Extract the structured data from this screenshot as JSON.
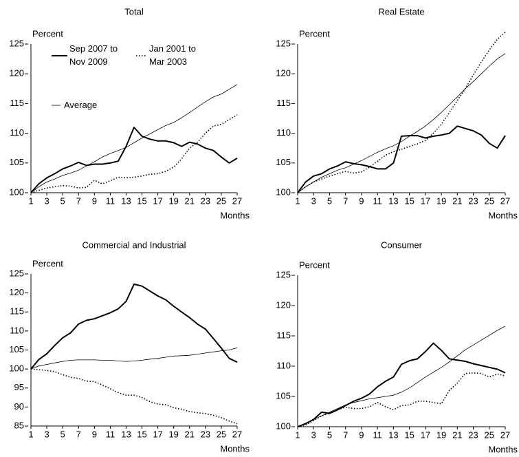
{
  "chart_data": [
    {
      "type": "line",
      "title": "Total",
      "ylabel": "Percent",
      "xlabel": "Months",
      "legend": true,
      "x": [
        1,
        2,
        3,
        4,
        5,
        6,
        7,
        8,
        9,
        10,
        11,
        12,
        13,
        14,
        15,
        16,
        17,
        18,
        19,
        20,
        21,
        22,
        23,
        24,
        25,
        26,
        27
      ],
      "xlim": [
        1,
        27
      ],
      "xticks": [
        1,
        3,
        5,
        7,
        9,
        11,
        13,
        15,
        17,
        19,
        21,
        23,
        25,
        27
      ],
      "ylim": [
        100,
        125
      ],
      "yticks": [
        100,
        105,
        110,
        115,
        120,
        125
      ],
      "series": [
        {
          "name": "Sep 2007 to Nov 2009",
          "color": "#000000",
          "linestyle": "solid",
          "linewidth": 2,
          "values": [
            100,
            101.5,
            102.5,
            103.2,
            104,
            104.5,
            105.1,
            104.6,
            104.8,
            104.8,
            105,
            105.3,
            107.8,
            111,
            109.5,
            109,
            108.7,
            108.7,
            108.4,
            107.8,
            108.5,
            108.2,
            107.5,
            107.1,
            106,
            105,
            105.8
          ]
        },
        {
          "name": "Jan 2001 to Mar 2003",
          "color": "#000000",
          "linestyle": "dotted",
          "linewidth": 1.6,
          "values": [
            100,
            100.4,
            100.8,
            101,
            101.2,
            101.1,
            100.8,
            100.9,
            102.1,
            101.5,
            102,
            102.6,
            102.5,
            102.6,
            102.8,
            103.1,
            103.2,
            103.6,
            104.3,
            105.7,
            107.5,
            108.5,
            110,
            111.2,
            111.5,
            112.3,
            113.1
          ]
        },
        {
          "name": "Average",
          "color": "#000000",
          "linestyle": "solid",
          "linewidth": 0.8,
          "values": [
            100,
            101,
            101.8,
            102.3,
            102.9,
            103.3,
            103.8,
            104.5,
            105.2,
            106,
            106.6,
            107.1,
            107.6,
            108.4,
            109.2,
            109.9,
            110.6,
            111.3,
            111.8,
            112.6,
            113.5,
            114.4,
            115.3,
            116.1,
            116.6,
            117.4,
            118.2
          ]
        }
      ]
    },
    {
      "type": "line",
      "title": "Real Estate",
      "ylabel": "Percent",
      "xlabel": "Months",
      "legend": false,
      "x": [
        1,
        2,
        3,
        4,
        5,
        6,
        7,
        8,
        9,
        10,
        11,
        12,
        13,
        14,
        15,
        16,
        17,
        18,
        19,
        20,
        21,
        22,
        23,
        24,
        25,
        26,
        27
      ],
      "xlim": [
        1,
        27
      ],
      "xticks": [
        1,
        3,
        5,
        7,
        9,
        11,
        13,
        15,
        17,
        19,
        21,
        23,
        25,
        27
      ],
      "ylim": [
        100,
        125
      ],
      "yticks": [
        100,
        105,
        110,
        115,
        120,
        125
      ],
      "series": [
        {
          "name": "Sep 2007 to Nov 2009",
          "color": "#000000",
          "linestyle": "solid",
          "linewidth": 2,
          "values": [
            100,
            101.8,
            102.8,
            103.2,
            104,
            104.5,
            105.2,
            104.9,
            104.7,
            104.4,
            104,
            104,
            105,
            109.5,
            109.6,
            109.6,
            109.2,
            109.5,
            109.7,
            110,
            111.2,
            110.8,
            110.4,
            109.7,
            108.3,
            107.5,
            109.6
          ]
        },
        {
          "name": "Jan 2001 to Mar 2003",
          "color": "#000000",
          "linestyle": "dotted",
          "linewidth": 1.6,
          "values": [
            100,
            101,
            101.8,
            102.3,
            102.8,
            103.2,
            103.6,
            103.3,
            103.5,
            104.3,
            105.3,
            106.3,
            106.9,
            107.3,
            107.8,
            108.2,
            108.8,
            110,
            111.5,
            113.5,
            115.5,
            117.5,
            119.8,
            122,
            124,
            125.8,
            127
          ]
        },
        {
          "name": "Average",
          "color": "#000000",
          "linestyle": "solid",
          "linewidth": 0.8,
          "values": [
            100,
            101,
            101.8,
            102.6,
            103.2,
            103.8,
            104.2,
            104.8,
            105.4,
            106.1,
            106.8,
            107.4,
            107.9,
            108.6,
            109.5,
            110.3,
            111.2,
            112.3,
            113.5,
            114.8,
            116.1,
            117.5,
            118.7,
            120,
            121.3,
            122.5,
            123.4
          ]
        }
      ]
    },
    {
      "type": "line",
      "title": "Commercial and Industrial",
      "ylabel": "Percent",
      "xlabel": "Months",
      "legend": false,
      "x": [
        1,
        2,
        3,
        4,
        5,
        6,
        7,
        8,
        9,
        10,
        11,
        12,
        13,
        14,
        15,
        16,
        17,
        18,
        19,
        20,
        21,
        22,
        23,
        24,
        25,
        26,
        27
      ],
      "xlim": [
        1,
        27
      ],
      "xticks": [
        1,
        3,
        5,
        7,
        9,
        11,
        13,
        15,
        17,
        19,
        21,
        23,
        25,
        27
      ],
      "ylim": [
        85,
        125
      ],
      "yticks": [
        85,
        90,
        95,
        100,
        105,
        110,
        115,
        120,
        125
      ],
      "series": [
        {
          "name": "Sep 2007 to Nov 2009",
          "color": "#000000",
          "linestyle": "solid",
          "linewidth": 2,
          "values": [
            100,
            102.5,
            104,
            106.2,
            108.2,
            109.5,
            111.8,
            112.8,
            113.2,
            114,
            114.8,
            115.8,
            117.8,
            122.3,
            121.8,
            120.5,
            119.2,
            118.2,
            116.5,
            115,
            113.5,
            111.8,
            110.5,
            108,
            105.5,
            102.8,
            101.8
          ]
        },
        {
          "name": "Jan 2001 to Mar 2003",
          "color": "#000000",
          "linestyle": "dotted",
          "linewidth": 1.6,
          "values": [
            100,
            99.8,
            99.6,
            99.3,
            98.5,
            97.8,
            97.5,
            96.8,
            96.7,
            95.8,
            94.8,
            93.8,
            93.1,
            93.1,
            92.5,
            91.4,
            90.8,
            90.6,
            89.8,
            89.4,
            88.8,
            88.5,
            88.3,
            87.8,
            87.2,
            86.3,
            85.6
          ]
        },
        {
          "name": "Average",
          "color": "#000000",
          "linestyle": "solid",
          "linewidth": 0.8,
          "values": [
            100,
            100.8,
            101.2,
            101.6,
            102,
            102.3,
            102.4,
            102.4,
            102.4,
            102.3,
            102.3,
            102.1,
            102,
            102.1,
            102.3,
            102.6,
            102.8,
            103.1,
            103.4,
            103.5,
            103.6,
            103.9,
            104.2,
            104.5,
            104.8,
            105,
            105.6
          ]
        }
      ]
    },
    {
      "type": "line",
      "title": "Consumer",
      "ylabel": "Percent",
      "xlabel": "Months",
      "legend": false,
      "x": [
        1,
        2,
        3,
        4,
        5,
        6,
        7,
        8,
        9,
        10,
        11,
        12,
        13,
        14,
        15,
        16,
        17,
        18,
        19,
        20,
        21,
        22,
        23,
        24,
        25,
        26,
        27
      ],
      "xlim": [
        1,
        27
      ],
      "xticks": [
        1,
        3,
        5,
        7,
        9,
        11,
        13,
        15,
        17,
        19,
        21,
        23,
        25,
        27
      ],
      "ylim": [
        100,
        125
      ],
      "yticks": [
        100,
        105,
        110,
        115,
        120,
        125
      ],
      "series": [
        {
          "name": "Sep 2007 to Nov 2009",
          "color": "#000000",
          "linestyle": "solid",
          "linewidth": 2,
          "values": [
            100,
            100.5,
            101.2,
            102.4,
            102.2,
            102.8,
            103.5,
            104.2,
            104.7,
            105.4,
            106.6,
            107.5,
            108.2,
            110.3,
            110.9,
            111.2,
            112.4,
            113.8,
            112.6,
            111.2,
            111,
            110.8,
            110.4,
            110.1,
            109.8,
            109.5,
            108.9
          ]
        },
        {
          "name": "Jan 2001 to Mar 2003",
          "color": "#000000",
          "linestyle": "dotted",
          "linewidth": 1.6,
          "values": [
            100,
            100.3,
            101,
            101.8,
            102.2,
            102.8,
            103.2,
            103,
            103,
            103.3,
            104,
            103.3,
            102.8,
            103.5,
            103.6,
            104.2,
            104.2,
            104,
            103.8,
            106,
            107.2,
            108.8,
            108.9,
            108.8,
            108.2,
            108.7,
            108.4
          ]
        },
        {
          "name": "Average",
          "color": "#000000",
          "linestyle": "solid",
          "linewidth": 0.8,
          "values": [
            100,
            100.6,
            101.2,
            101.8,
            102.4,
            103,
            103.6,
            104,
            104.3,
            104.6,
            104.8,
            105,
            105.2,
            105.7,
            106.4,
            107.3,
            108.2,
            109,
            109.8,
            110.7,
            111.7,
            112.7,
            113.5,
            114.3,
            115.1,
            115.9,
            116.6
          ]
        }
      ]
    }
  ]
}
